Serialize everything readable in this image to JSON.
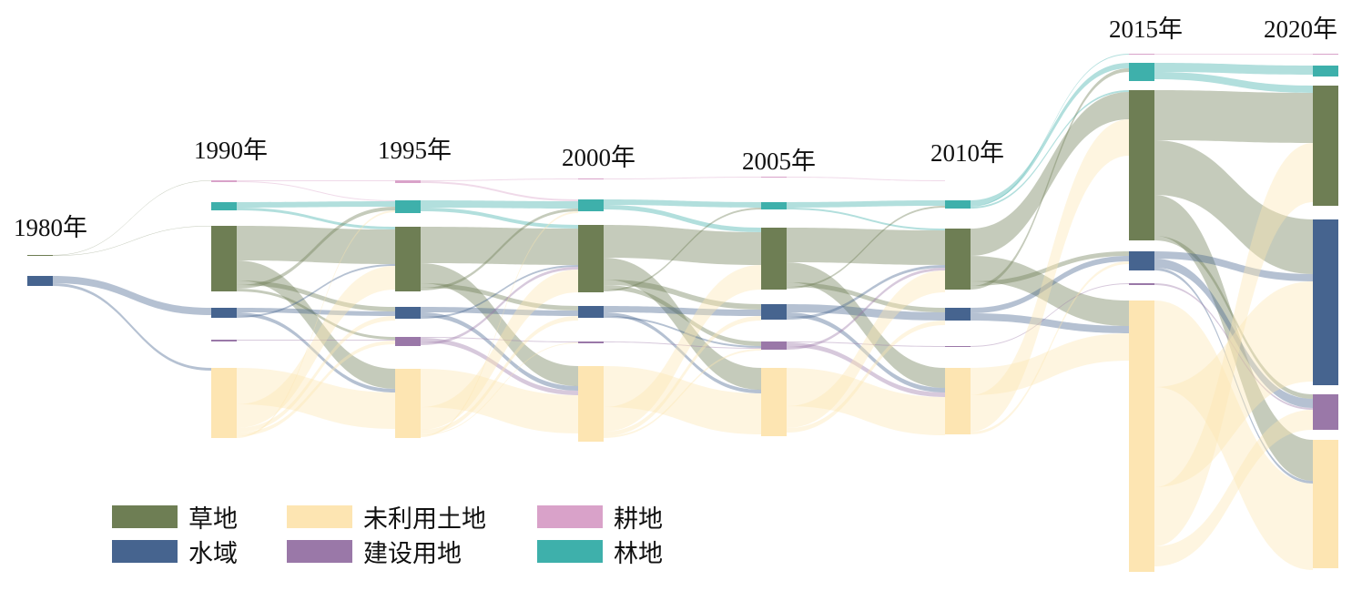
{
  "chart_data": {
    "type": "sankey",
    "title": "",
    "categories": [
      "耕地",
      "林地",
      "草地",
      "水域",
      "建设用地",
      "未利用土地"
    ],
    "colors": {
      "耕地": "#d9a2c9",
      "林地": "#3eb0ab",
      "草地": "#6e7e54",
      "水域": "#46648f",
      "建设用地": "#9a78a8",
      "未利用土地": "#fde5b2"
    },
    "years": [
      "1980年",
      "1990年",
      "1995年",
      "2000年",
      "2005年",
      "2010年",
      "2015年",
      "2020年"
    ],
    "node_values": [
      [
        0,
        0,
        1,
        11,
        0,
        0
      ],
      [
        2,
        9,
        72,
        11,
        2,
        77
      ],
      [
        3,
        14,
        71,
        13,
        10,
        76
      ],
      [
        1,
        13,
        74,
        13,
        2,
        83
      ],
      [
        1,
        8,
        68,
        17,
        9,
        75
      ],
      [
        0,
        9,
        67,
        14,
        1,
        73
      ],
      [
        1,
        20,
        165,
        21,
        2,
        298
      ],
      [
        1,
        12,
        132,
        182,
        39,
        141
      ]
    ],
    "links": [
      [
        [
          2,
          0,
          0.5
        ],
        [
          2,
          2,
          0.5
        ],
        [
          3,
          3,
          8
        ],
        [
          3,
          5,
          3
        ]
      ],
      [
        [
          0,
          0,
          1
        ],
        [
          0,
          1,
          1
        ],
        [
          1,
          1,
          6
        ],
        [
          1,
          2,
          3
        ],
        [
          2,
          2,
          38
        ],
        [
          2,
          5,
          22
        ],
        [
          2,
          3,
          5
        ],
        [
          2,
          1,
          4
        ],
        [
          2,
          4,
          3
        ],
        [
          3,
          3,
          5
        ],
        [
          3,
          5,
          4
        ],
        [
          3,
          2,
          2
        ],
        [
          4,
          4,
          1
        ],
        [
          5,
          5,
          40
        ],
        [
          5,
          2,
          26
        ],
        [
          5,
          3,
          5
        ],
        [
          5,
          4,
          4
        ],
        [
          5,
          1,
          2
        ]
      ],
      [
        [
          0,
          0,
          1
        ],
        [
          0,
          1,
          2
        ],
        [
          1,
          1,
          8
        ],
        [
          1,
          2,
          4
        ],
        [
          2,
          2,
          40
        ],
        [
          2,
          5,
          22
        ],
        [
          2,
          3,
          5
        ],
        [
          2,
          1,
          3
        ],
        [
          3,
          3,
          6
        ],
        [
          3,
          5,
          5
        ],
        [
          3,
          2,
          2
        ],
        [
          4,
          4,
          1
        ],
        [
          4,
          5,
          5
        ],
        [
          4,
          2,
          3
        ],
        [
          5,
          5,
          42
        ],
        [
          5,
          2,
          25
        ],
        [
          5,
          3,
          5
        ],
        [
          5,
          4,
          1
        ],
        [
          5,
          1,
          2
        ]
      ],
      [
        [
          0,
          0,
          1
        ],
        [
          1,
          1,
          6
        ],
        [
          1,
          2,
          5
        ],
        [
          2,
          2,
          36
        ],
        [
          2,
          5,
          24
        ],
        [
          2,
          3,
          6
        ],
        [
          2,
          4,
          5
        ],
        [
          2,
          1,
          2
        ],
        [
          3,
          3,
          7
        ],
        [
          3,
          5,
          4
        ],
        [
          3,
          4,
          2
        ],
        [
          4,
          4,
          1
        ],
        [
          5,
          5,
          45
        ],
        [
          5,
          2,
          27
        ],
        [
          5,
          3,
          5
        ],
        [
          5,
          4,
          2
        ]
      ],
      [
        [
          0,
          0,
          1
        ],
        [
          1,
          1,
          6
        ],
        [
          1,
          2,
          2
        ],
        [
          2,
          2,
          38
        ],
        [
          2,
          5,
          22
        ],
        [
          2,
          3,
          5
        ],
        [
          2,
          1,
          2
        ],
        [
          3,
          3,
          9
        ],
        [
          3,
          5,
          5
        ],
        [
          3,
          2,
          3
        ],
        [
          4,
          4,
          1
        ],
        [
          4,
          5,
          5
        ],
        [
          4,
          2,
          3
        ],
        [
          5,
          5,
          42
        ],
        [
          5,
          2,
          24
        ],
        [
          5,
          3,
          5
        ]
      ],
      [
        [
          1,
          1,
          6
        ],
        [
          1,
          0,
          1
        ],
        [
          1,
          2,
          2
        ],
        [
          2,
          2,
          30
        ],
        [
          2,
          5,
          28
        ],
        [
          2,
          3,
          5
        ],
        [
          2,
          1,
          4
        ],
        [
          3,
          3,
          6
        ],
        [
          3,
          5,
          8
        ],
        [
          4,
          4,
          1
        ],
        [
          5,
          5,
          30
        ],
        [
          5,
          2,
          40
        ],
        [
          5,
          3,
          3
        ]
      ],
      [
        [
          0,
          0,
          1
        ],
        [
          1,
          1,
          10
        ],
        [
          1,
          2,
          8
        ],
        [
          2,
          2,
          55
        ],
        [
          2,
          3,
          60
        ],
        [
          2,
          5,
          45
        ],
        [
          2,
          4,
          5
        ],
        [
          3,
          3,
          8
        ],
        [
          3,
          4,
          10
        ],
        [
          3,
          5,
          3
        ],
        [
          4,
          4,
          2
        ],
        [
          5,
          5,
          95
        ],
        [
          5,
          3,
          110
        ],
        [
          5,
          2,
          65
        ],
        [
          5,
          4,
          22
        ]
      ]
    ],
    "legend": {
      "placement": "bottom-left",
      "items": [
        "草地",
        "未利用土地",
        "耕地",
        "水域",
        "建设用地",
        "林地"
      ]
    }
  }
}
